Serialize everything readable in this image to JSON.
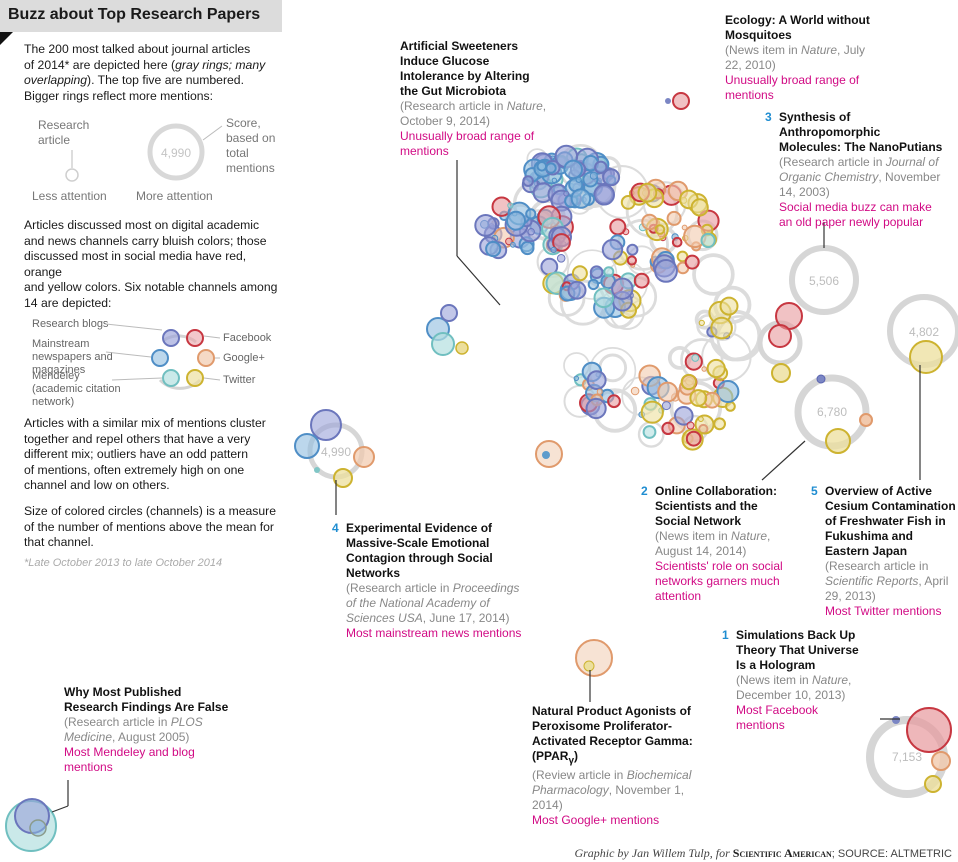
{
  "header": {
    "title": "Buzz about Top Research Papers"
  },
  "intro": {
    "p1_a": "The 200 most talked about journal articles",
    "p1_b": "of 2014* are depicted here (",
    "p1_italic_a": "gray rings; many",
    "p1_italic_b": "overlapping",
    "p1_c": "). The top five are numbered.",
    "p1_d": "Bigger rings reflect more mentions:"
  },
  "legend_size": {
    "research_article": "Research article",
    "score": "Score, based on total mentions",
    "sample_score": "4,990",
    "less": "Less attention",
    "more": "More attention"
  },
  "color_text": [
    "Articles discussed most on digital academic",
    "and news channels carry bluish colors; those",
    "discussed most in social media have red, orange",
    "and yellow colors. Six notable channels among",
    "14 are depicted:"
  ],
  "channels": {
    "research_blogs": "Research blogs",
    "news": "Mainstream newspapers and magazines",
    "mendeley": "Mendeley (academic citation network)",
    "facebook": "Facebook",
    "googleplus": "Google+",
    "twitter": "Twitter"
  },
  "colors": {
    "blogs": "#7b86c4",
    "news": "#5f9ccc",
    "mendeley": "#80c6c6",
    "facebook": "#cf3b45",
    "googleplus": "#e4a37c",
    "twitter": "#d6bd3b",
    "magenta": "#d10a84",
    "blue_num": "#1f8dd1",
    "ring": "#d2d2d2"
  },
  "cluster_text": [
    "Articles with a similar mix of mentions cluster",
    "together and repel others that have a very",
    "different mix; outliers have an odd pattern",
    "of mentions, often extremely high on one",
    "channel and low on others."
  ],
  "size_text": [
    "Size of colored circles (channels) is a measure",
    "of the number of mentions above the mean for",
    "that channel."
  ],
  "footnote": "*Late October 2013 to late October 2014",
  "scores": {
    "s5506": "5,506",
    "s4802": "4,802",
    "s6780": "6,780",
    "s4990": "4,990",
    "s7153": "7,153"
  },
  "annotations": {
    "ecology": {
      "title": "Ecology: A World without Mosquitoes",
      "desc_a": "(News item in ",
      "desc_journal": "Nature",
      "desc_b": ", July 22, 2010)",
      "note": "Unusually broad range of mentions"
    },
    "sweeteners": {
      "title": "Artificial Sweeteners Induce Glucose Intolerance by Altering the Gut Microbiota",
      "desc_a": "(Research article in ",
      "desc_journal": "Nature",
      "desc_b": ", October 9, 2014)",
      "note": "Unusually broad range of mentions"
    },
    "nanoputians": {
      "num": "3",
      "title": "Synthesis of Anthropomorphic Molecules: The NanoPutians",
      "desc_a": "(Research article in ",
      "desc_journal": "Journal of Organic Chemistry",
      "desc_b": ", November 14, 2003)",
      "note": "Social media buzz can make an old paper newly popular"
    },
    "collaboration": {
      "num": "2",
      "title": "Online Collaboration: Scientists and the Social Network",
      "desc_a": "(News item in ",
      "desc_journal": "Nature",
      "desc_b": ", August 14, 2014)",
      "note": "Scientists' role on social networks garners much attention"
    },
    "cesium": {
      "num": "5",
      "title": "Overview of Active Cesium Contamination of Freshwater Fish in Fukushima and Eastern Japan",
      "desc_a": "(Research article in ",
      "desc_journal": "Scientific Reports",
      "desc_b": ", April 29, 2013)",
      "note": "Most Twitter mentions"
    },
    "contagion": {
      "num": "4",
      "title": "Experimental Evidence of Massive-Scale Emotional Contagion through Social Networks",
      "desc_a": "(Research article in ",
      "desc_journal": "Proceedings of the National Academy of Sciences USA",
      "desc_b": ", June 17, 2014)",
      "note": "Most mainstream news mentions"
    },
    "hologram": {
      "num": "1",
      "title": "Simulations Back Up Theory That Universe Is a Hologram",
      "desc_a": "(News item in ",
      "desc_journal": "Nature",
      "desc_b": ", December 10, 2013)",
      "note": "Most Facebook mentions"
    },
    "ppar": {
      "title_a": "Natural Product Agonists of Peroxisome Proliferator-Activated Receptor Gamma: (PPAR",
      "title_sub": "γ",
      "title_b": ")",
      "desc_a": "(Review article in ",
      "desc_journal": "Biochemical Pharmacology",
      "desc_b": ", November 1, 2014)",
      "note": "Most Google+ mentions"
    },
    "published": {
      "title": "Why Most Published Research Findings Are False",
      "desc_a": "(Research article in ",
      "desc_journal": "PLOS Medicine",
      "desc_b": ", August 2005)",
      "note": "Most Mendeley and blog mentions"
    }
  },
  "credit": {
    "by": "Graphic by Jan Willem Tulp, for ",
    "magazine": "Scientific American",
    "source": "; SOURCE: ALTMETRIC"
  }
}
